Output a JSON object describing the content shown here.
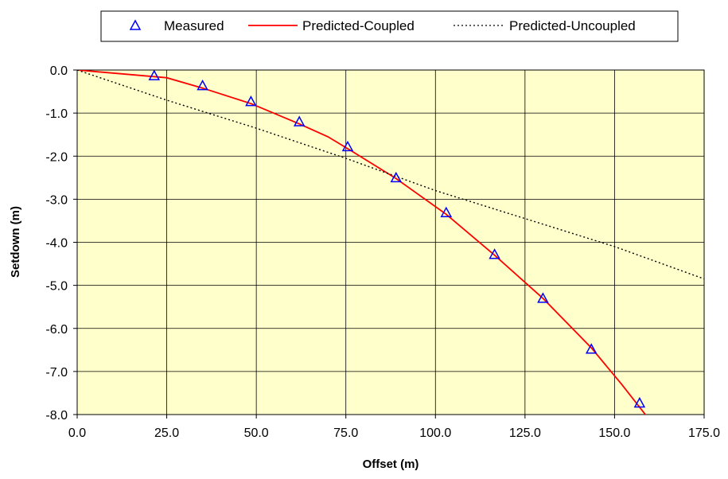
{
  "chart_data": {
    "type": "scatter",
    "xlabel": "Offset (m)",
    "ylabel": "Setdown (m)",
    "xlim": [
      0,
      175
    ],
    "ylim": [
      -8,
      0
    ],
    "x_ticks": [
      0,
      25,
      50,
      75,
      100,
      125,
      150,
      175
    ],
    "x_tick_labels": [
      "0.0",
      "25.0",
      "50.0",
      "75.0",
      "100.0",
      "125.0",
      "150.0",
      "175.0"
    ],
    "y_ticks": [
      0,
      -1,
      -2,
      -3,
      -4,
      -5,
      -6,
      -7,
      -8
    ],
    "y_tick_labels": [
      "0.0",
      "-1.0",
      "-2.0",
      "-3.0",
      "-4.0",
      "-5.0",
      "-6.0",
      "-7.0",
      "-8.0"
    ],
    "grid": true,
    "plot_background": "#ffffcc",
    "legend_position": "top",
    "series": [
      {
        "name": "Measured",
        "kind": "markers",
        "marker": "open-triangle",
        "color": "#0000ff",
        "points": [
          [
            21.5,
            -0.15
          ],
          [
            35,
            -0.38
          ],
          [
            48.5,
            -0.75
          ],
          [
            62,
            -1.22
          ],
          [
            75.5,
            -1.8
          ],
          [
            89,
            -2.52
          ],
          [
            103,
            -3.33
          ],
          [
            116.5,
            -4.3
          ],
          [
            130,
            -5.32
          ],
          [
            143.5,
            -6.5
          ],
          [
            157,
            -7.75
          ]
        ]
      },
      {
        "name": "Predicted-Coupled",
        "kind": "line",
        "dash": "solid",
        "color": "#ff0000",
        "points": [
          [
            0,
            0
          ],
          [
            25,
            -0.18
          ],
          [
            35,
            -0.42
          ],
          [
            48.5,
            -0.78
          ],
          [
            62,
            -1.25
          ],
          [
            70,
            -1.55
          ],
          [
            76,
            -1.85
          ],
          [
            89,
            -2.52
          ],
          [
            103,
            -3.35
          ],
          [
            116.5,
            -4.3
          ],
          [
            130,
            -5.3
          ],
          [
            143.5,
            -6.45
          ],
          [
            152,
            -7.3
          ],
          [
            160,
            -8.15
          ]
        ]
      },
      {
        "name": "Predicted-Uncoupled",
        "kind": "line",
        "dash": "dotted",
        "color": "#000000",
        "points": [
          [
            0,
            0
          ],
          [
            25,
            -0.7
          ],
          [
            50,
            -1.35
          ],
          [
            75,
            -2.05
          ],
          [
            100,
            -2.8
          ],
          [
            125,
            -3.45
          ],
          [
            150,
            -4.1
          ],
          [
            175,
            -4.85
          ]
        ]
      }
    ]
  }
}
